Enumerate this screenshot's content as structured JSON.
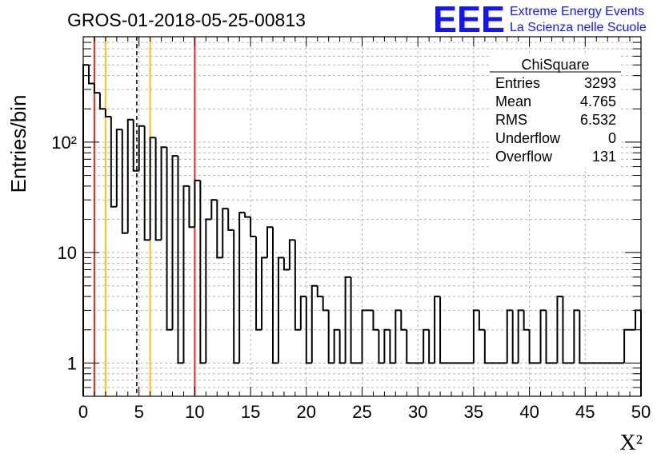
{
  "header": {
    "run_title": "GROS-01-2018-05-25-00813",
    "logo_text": "EEE",
    "org_line1": "Extreme Energy Events",
    "org_line2": "La Scienza nelle Scuole"
  },
  "colors": {
    "histogram": "#000000",
    "red_lines": "#e8281e",
    "yellow_lines": "#f2c21b",
    "logo": "#1515f0",
    "grid": "#b4b4b4"
  },
  "stats_box": {
    "title": "ChiSquare",
    "rows": [
      {
        "label": "Entries",
        "value": "3293"
      },
      {
        "label": "Mean",
        "value": "4.765"
      },
      {
        "label": "RMS",
        "value": "6.532"
      },
      {
        "label": "Underflow",
        "value": "0"
      },
      {
        "label": "Overflow",
        "value": "131"
      }
    ]
  },
  "chart_data": {
    "type": "bar",
    "style": "step-histogram",
    "title": "GROS-01-2018-05-25-00813",
    "xlabel": "Χ²",
    "ylabel": "Entries/bin",
    "x_scale": "linear",
    "y_scale": "log",
    "xlim": [
      0,
      50
    ],
    "ylim": [
      0.5,
      900
    ],
    "grid": true,
    "legend": "stats-box top-right",
    "x_ticks": [
      "0",
      "5",
      "10",
      "15",
      "20",
      "25",
      "30",
      "35",
      "40",
      "45",
      "50"
    ],
    "y_ticks": [
      {
        "value": 1,
        "label": "1"
      },
      {
        "value": 10,
        "label": "10"
      },
      {
        "value": 100,
        "label": "10²"
      }
    ],
    "bin_width": 0.5,
    "bin_start": 0,
    "values": [
      500,
      340,
      280,
      200,
      170,
      26,
      130,
      15,
      160,
      55,
      140,
      13,
      110,
      13,
      90,
      2,
      75,
      1,
      40,
      17,
      45,
      1,
      20,
      30,
      9,
      25,
      16,
      1,
      23,
      21,
      14,
      2,
      9,
      17,
      1,
      9,
      7,
      13,
      2,
      4,
      1,
      5,
      4,
      3,
      1,
      2,
      1,
      6,
      1,
      1,
      3,
      3,
      2,
      1,
      2,
      1,
      3,
      2,
      1,
      1,
      1,
      2,
      1,
      4,
      1,
      1,
      1,
      1,
      1,
      1,
      3,
      2,
      1,
      1,
      1,
      1,
      3,
      1,
      3,
      2,
      1,
      1,
      3,
      1,
      1,
      4,
      1,
      1,
      3,
      1,
      1,
      1,
      1,
      1,
      1,
      1,
      1,
      2,
      2,
      3
    ],
    "vertical_lines": [
      {
        "x": 1,
        "color": "red",
        "style": "solid"
      },
      {
        "x": 2,
        "color": "yellow",
        "style": "solid"
      },
      {
        "x": 4.8,
        "color": "black",
        "style": "dashed"
      },
      {
        "x": 6,
        "color": "yellow",
        "style": "solid"
      },
      {
        "x": 10,
        "color": "red",
        "style": "solid"
      }
    ]
  }
}
